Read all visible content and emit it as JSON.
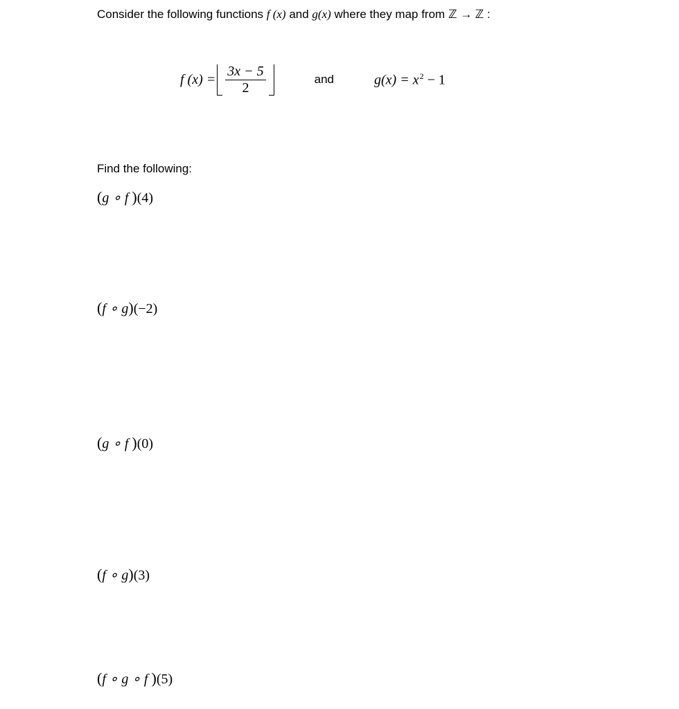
{
  "intro": {
    "prefix": "Consider the following functions ",
    "fx": "f (x)",
    "and1": " and ",
    "gx": "g(x)",
    "mid": " where they map from ",
    "Z": "ℤ",
    "arrow": " → ",
    "Z2": "ℤ",
    "colon": " :"
  },
  "definitions": {
    "fx_label": "f (x) =",
    "frac_num": "3x − 5",
    "frac_den": "2",
    "and": "and",
    "gx_label": "g(x) = x",
    "gx_exp": "2",
    "gx_tail": " − 1"
  },
  "find_label": "Find the following:",
  "q1": {
    "open": "(",
    "body": "g ∘ f ",
    "close": ")",
    "arg": "(4)"
  },
  "q2": {
    "open": "(",
    "body": "f ∘ g",
    "close": ")",
    "arg": "(−2)"
  },
  "q3": {
    "open": "(",
    "body": "g ∘ f ",
    "close": ")",
    "arg": "(0)"
  },
  "q4": {
    "open": "(",
    "body": "f ∘ g",
    "close": ")",
    "arg": "(3)"
  },
  "q5": {
    "open": "(",
    "body": "f ∘ g ∘ f ",
    "close": ")",
    "arg": "(5)"
  }
}
